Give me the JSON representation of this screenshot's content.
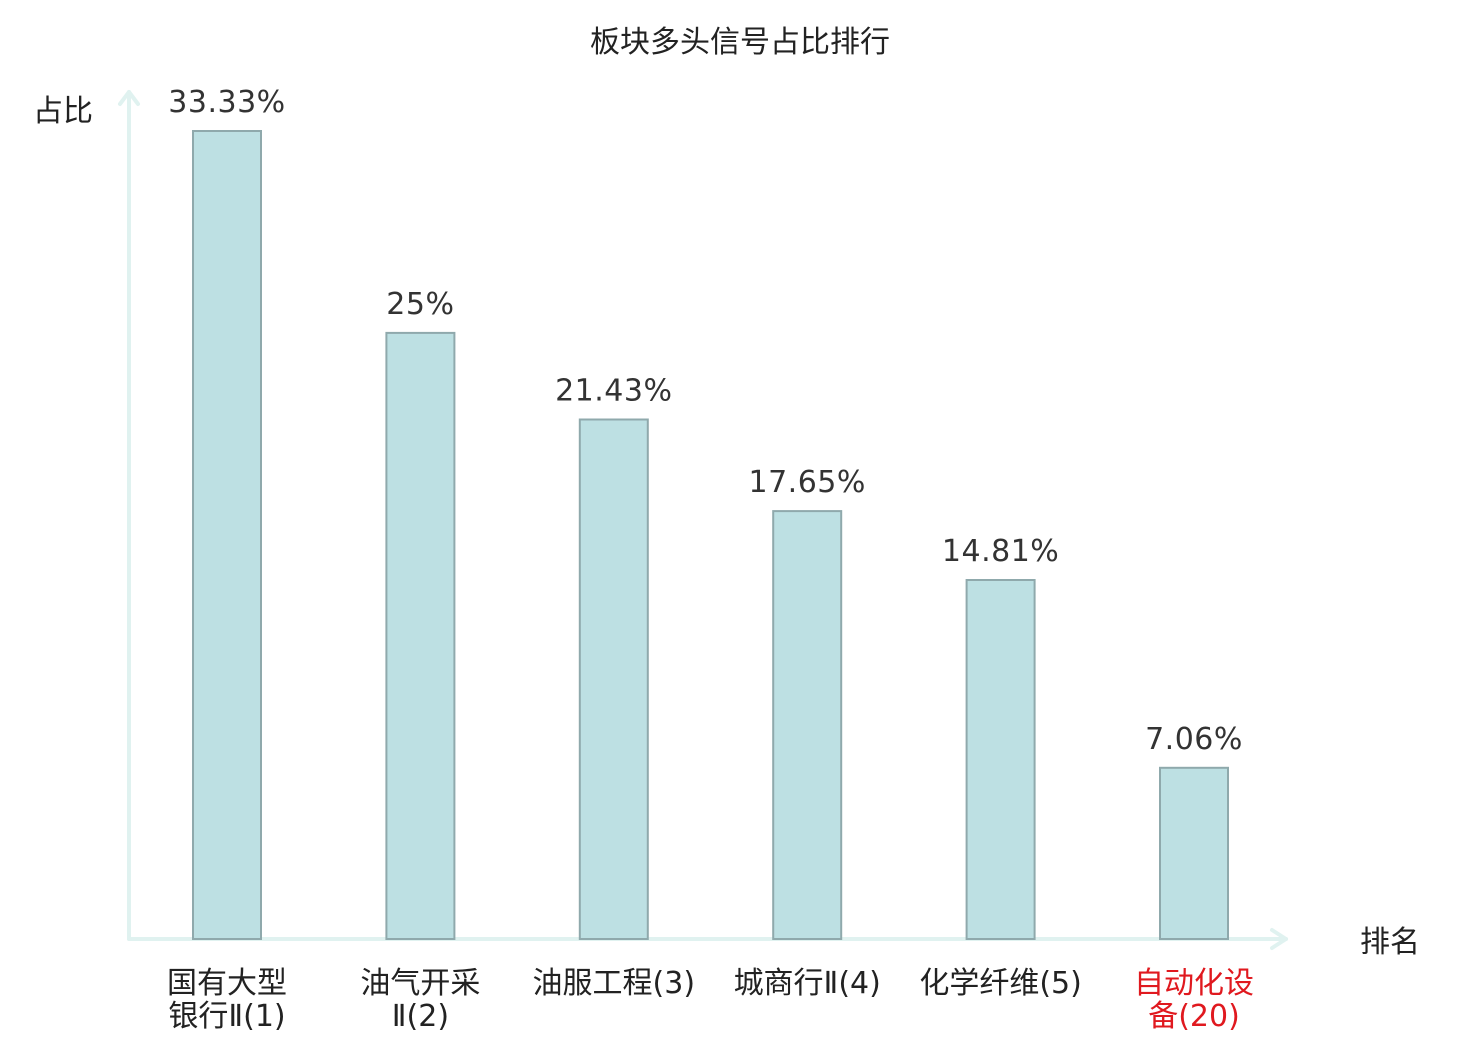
{
  "chart_data": {
    "type": "bar",
    "title": "板块多头信号占比排行",
    "ylabel": "占比",
    "xlabel": "排名",
    "categories": [
      [
        "国有大型",
        "银行Ⅱ(1)"
      ],
      [
        "油气开采",
        "Ⅱ(2)"
      ],
      [
        "油服工程(3)"
      ],
      [
        "城商行Ⅱ(4)"
      ],
      [
        "化学纤维(5)"
      ],
      [
        "自动化设",
        "备(20)"
      ]
    ],
    "values": [
      33.33,
      25,
      21.43,
      17.65,
      14.81,
      7.06
    ],
    "value_labels": [
      "33.33%",
      "25%",
      "21.43%",
      "17.65%",
      "14.81%",
      "7.06%"
    ],
    "highlight_index": 5,
    "ylim": [
      0,
      33.33
    ],
    "grid": false,
    "legend": "none",
    "colors": {
      "bar_fill": "#bde0e3",
      "bar_stroke": "#8fa9ac",
      "axis": "#e0f2f0",
      "text": "#222222",
      "highlight": "#e0191f"
    }
  }
}
